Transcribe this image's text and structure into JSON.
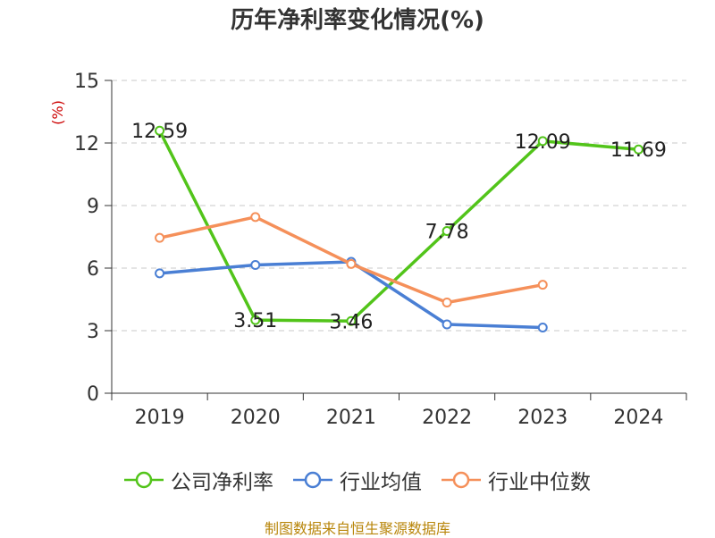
{
  "chart_data": {
    "type": "line",
    "title": "历年净利率变化情况(%)",
    "ylabel": "(%)",
    "xlabel": "",
    "categories": [
      "2019",
      "2020",
      "2021",
      "2022",
      "2023",
      "2024"
    ],
    "ylim": [
      0,
      15
    ],
    "yticks": [
      0,
      3,
      6,
      9,
      12,
      15
    ],
    "grid": true,
    "legend_position": "bottom",
    "series": [
      {
        "name": "公司净利率",
        "color": "#52c41a",
        "values": [
          12.59,
          3.51,
          3.46,
          7.78,
          12.09,
          11.69
        ],
        "labels": [
          "12.59",
          "3.51",
          "3.46",
          "7.78",
          "12.09",
          "11.69"
        ]
      },
      {
        "name": "行业均值",
        "color": "#4a7fd4",
        "values": [
          5.75,
          6.15,
          6.3,
          3.3,
          3.15,
          null
        ]
      },
      {
        "name": "行业中位数",
        "color": "#f5905a",
        "values": [
          7.45,
          8.45,
          6.2,
          4.35,
          5.2,
          null
        ]
      }
    ]
  },
  "source": "制图数据来自恒生聚源数据库"
}
